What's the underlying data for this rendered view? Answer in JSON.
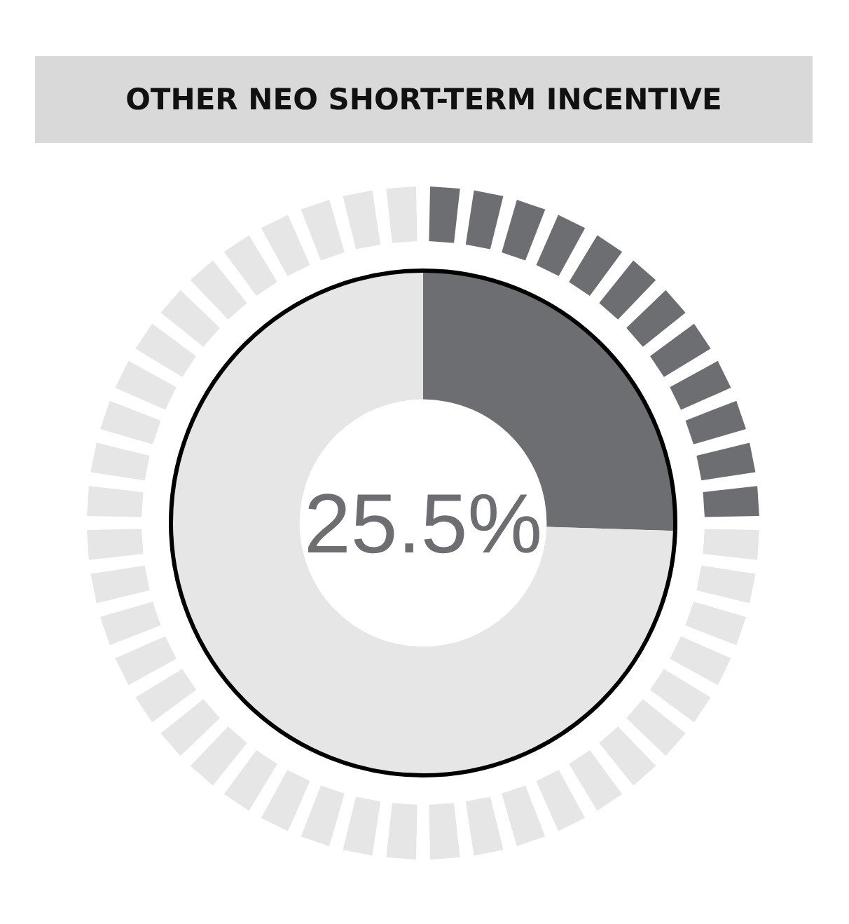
{
  "chart_data": {
    "type": "donut",
    "title": "OTHER NEO SHORT-TERM INCENTIVE",
    "categories": [
      null,
      null
    ],
    "values": [
      25.5,
      74.5
    ],
    "colors": [
      "#6d6e71",
      "#e6e6e7"
    ],
    "annotations": [
      "25.5%"
    ],
    "legend": false
  }
}
